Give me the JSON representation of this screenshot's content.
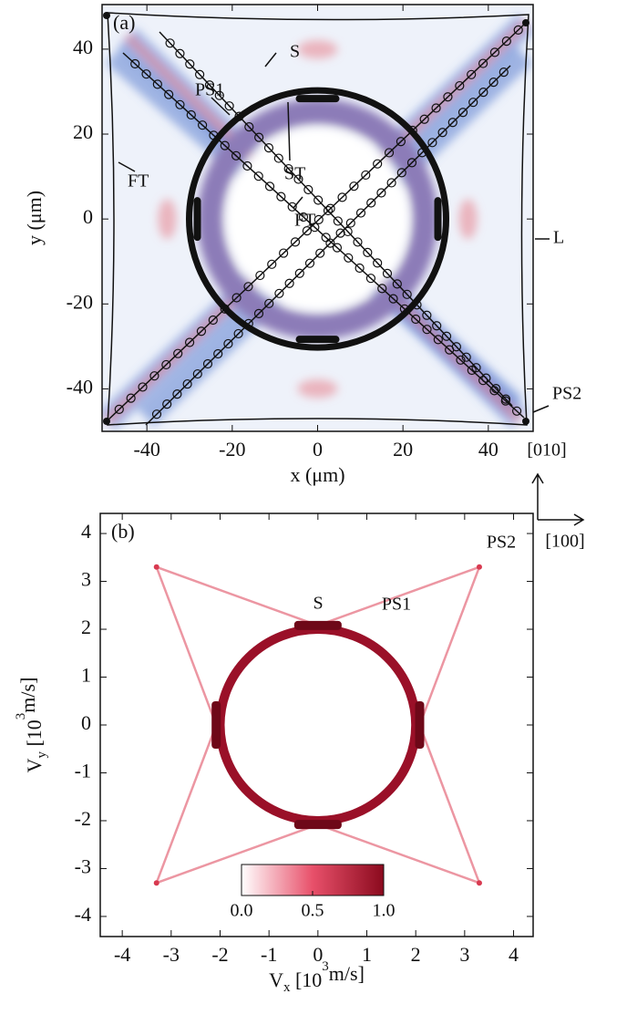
{
  "chart_data": [
    {
      "type": "map",
      "panel_label": "(a)",
      "x_label": [
        "x (",
        "μm",
        ")"
      ],
      "y_label": [
        "y (",
        "μm",
        ")"
      ],
      "xlim": [
        -50.5,
        50.5
      ],
      "ylim": [
        -50,
        50.5
      ],
      "xticks": [
        -40,
        -20,
        0,
        20,
        40
      ],
      "yticks": [
        -40,
        -20,
        0,
        20,
        40
      ],
      "annotations": [
        "S",
        "PS1",
        "ST",
        "FT",
        "FT",
        "L",
        "PS2"
      ],
      "axis_directions": [
        "[010]",
        "[100]"
      ]
    },
    {
      "type": "map",
      "panel_label": "(b)",
      "x_label": [
        "V",
        "x",
        " [10",
        "3",
        "m/s]"
      ],
      "y_label": [
        "V",
        "y",
        " [10",
        "3",
        "m/s]"
      ],
      "xlim": [
        -4.45,
        4.4
      ],
      "ylim": [
        -4.42,
        4.42
      ],
      "xticks": [
        -4,
        -3,
        -2,
        -1,
        0,
        1,
        2,
        3,
        4
      ],
      "yticks": [
        -4,
        -3,
        -2,
        -1,
        0,
        1,
        2,
        3,
        4
      ],
      "annotations": [
        "S",
        "PS1",
        "PS2"
      ],
      "colorbar": {
        "lim": [
          0,
          1
        ],
        "ticks": [
          {
            "value": 0,
            "label": "0.0"
          },
          {
            "value": 0.5,
            "label": "0.5"
          },
          {
            "value": 1,
            "label": "1.0"
          }
        ],
        "colors": [
          "#ffffff",
          "#e8506a",
          "#8b0a1e"
        ]
      }
    }
  ]
}
